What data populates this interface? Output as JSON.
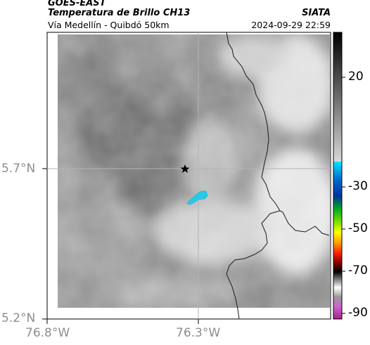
{
  "header": {
    "satellite": "GOES-EAST",
    "product": "Temperatura de Brillo CH13",
    "region": "Vía Medellín - Quibdó 50km",
    "organization": "SIATA",
    "datetime": "2024-09-29 22:59"
  },
  "axes": {
    "x_ticks": [
      "76.8°W",
      "76.3°W"
    ],
    "y_ticks": [
      "5.7°N",
      "5.2°N"
    ]
  },
  "colorbar": {
    "tick_labels": [
      "20",
      "-30",
      "-50",
      "-70",
      "-90"
    ],
    "colors": {
      "warm_top": "#000000",
      "gray_mid": "#808080",
      "cyan": "#00e5ff",
      "blue": "#0033cc",
      "green": "#00cc00",
      "yellow": "#ffff00",
      "red": "#ff0000",
      "magenta": "#cc44cc"
    }
  },
  "map": {
    "marker_icon": "star-icon",
    "cold_cloud_color": "#29c9e6",
    "gridline_color": "#b4b4b4"
  }
}
